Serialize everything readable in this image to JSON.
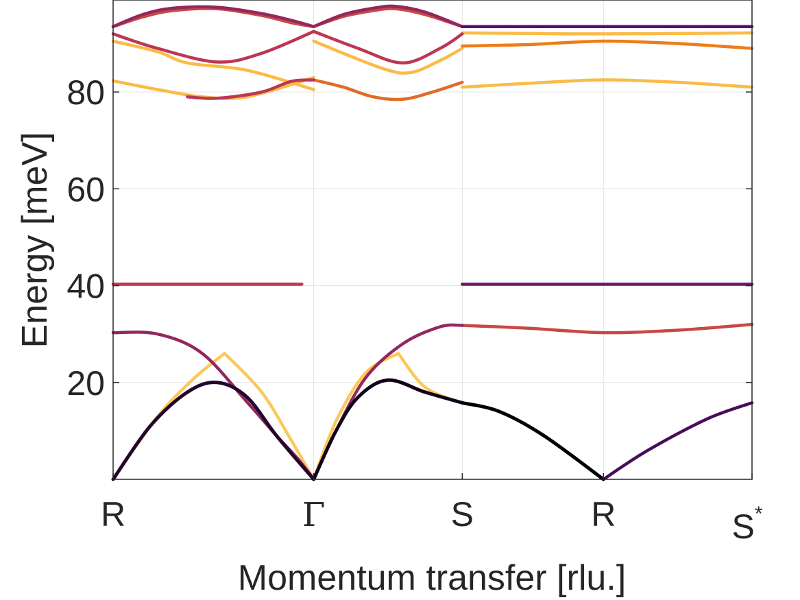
{
  "chart_data": {
    "type": "line",
    "title": "",
    "xlabel": "Momentum transfer [rlu.]",
    "ylabel": "Energy [meV]",
    "ylim": [
      0,
      99
    ],
    "x_ticks": [
      "R",
      "Γ",
      "S",
      "R",
      "S*"
    ],
    "x_tick_pos": [
      0,
      1.35,
      2.35,
      3.3,
      4.3
    ],
    "y_ticks": [
      20,
      40,
      60,
      80
    ],
    "grid": true,
    "colormap": [
      "#fcffa4",
      "#f98e09",
      "#bc3754",
      "#57106e",
      "#000004"
    ],
    "series": [
      {
        "x": [
          0,
          0.2,
          0.4,
          0.7,
          1.0,
          1.2,
          1.35
        ],
        "values": [
          93.5,
          96.0,
          97.3,
          97.5,
          96.2,
          94.8,
          93.5
        ],
        "intensity": 0.6
      },
      {
        "x": [
          0,
          0.2,
          0.4,
          0.7,
          1.0,
          1.2,
          1.35
        ],
        "values": [
          93.5,
          95.5,
          96.8,
          97.2,
          95.8,
          94.3,
          93.5
        ],
        "intensity": 0.45
      },
      {
        "x": [
          1.35,
          1.55,
          1.75,
          1.9,
          2.1,
          2.35
        ],
        "values": [
          93.5,
          96.0,
          97.3,
          97.7,
          96.5,
          93.5
        ],
        "intensity": 0.6
      },
      {
        "x": [
          1.35,
          1.55,
          1.75,
          1.9,
          2.1,
          2.35
        ],
        "values": [
          93.5,
          95.6,
          96.8,
          97.2,
          96.0,
          93.5
        ],
        "intensity": 0.45
      },
      {
        "x": [
          2.35,
          3.0,
          3.3,
          4.3
        ],
        "values": [
          93.5,
          93.5,
          93.5,
          93.5
        ],
        "intensity": 0.75
      },
      {
        "x": [
          0,
          0.3,
          0.7,
          1.0,
          1.35
        ],
        "values": [
          92.0,
          89.0,
          86.2,
          88.0,
          92.5
        ],
        "intensity": 0.5
      },
      {
        "x": [
          1.35,
          1.65,
          1.95,
          2.2,
          2.35
        ],
        "values": [
          92.5,
          89.0,
          86.0,
          89.0,
          92.0
        ],
        "intensity": 0.5
      },
      {
        "x": [
          0,
          0.3,
          0.5,
          0.9,
          1.35
        ],
        "values": [
          90.5,
          88.3,
          86.0,
          84.5,
          80.5
        ],
        "intensity": 0.15
      },
      {
        "x": [
          1.35,
          1.8,
          2.0,
          2.2,
          2.35
        ],
        "values": [
          90.5,
          85.0,
          84.0,
          86.5,
          89.0
        ],
        "intensity": 0.15
      },
      {
        "x": [
          2.35,
          2.8,
          3.3,
          3.8,
          4.3
        ],
        "values": [
          89.5,
          89.8,
          90.5,
          90.0,
          89.0
        ],
        "intensity": 0.3
      },
      {
        "x": [
          2.35,
          2.8,
          3.3,
          4.3
        ],
        "values": [
          92.2,
          92.1,
          92.0,
          92.2
        ],
        "intensity": 0.15
      },
      {
        "x": [
          0,
          0.3,
          0.6,
          0.9,
          1.35
        ],
        "values": [
          82.3,
          80.5,
          79.0,
          79.0,
          83.0
        ],
        "intensity": 0.15
      },
      {
        "x": [
          0.5,
          0.7,
          1.0,
          1.2,
          1.35
        ],
        "values": [
          79.0,
          78.7,
          80.0,
          82.2,
          82.5
        ],
        "intensity": 0.5
      },
      {
        "x": [
          1.35,
          1.55,
          1.75,
          1.95,
          2.15,
          2.35
        ],
        "values": [
          82.5,
          81.0,
          79.0,
          78.5,
          80.0,
          82.0
        ],
        "intensity": 0.35
      },
      {
        "x": [
          2.35,
          2.8,
          3.3,
          3.8,
          4.3
        ],
        "values": [
          81.0,
          81.8,
          82.5,
          82.0,
          81.0
        ],
        "intensity": 0.15
      },
      {
        "x": [
          0,
          1.27
        ],
        "values": [
          40.3,
          40.3
        ],
        "intensity": 0.5
      },
      {
        "x": [
          2.35,
          2.8,
          3.3,
          4.3
        ],
        "values": [
          40.3,
          40.3,
          40.3,
          40.3
        ],
        "intensity": 0.7
      },
      {
        "x": [
          0,
          0.3,
          0.6,
          0.9,
          1.1,
          1.25,
          1.35
        ],
        "values": [
          30.3,
          30.0,
          26.0,
          16.0,
          9.0,
          4.0,
          0
        ],
        "intensity": 0.6
      },
      {
        "x": [
          1.35,
          1.5,
          1.7,
          1.95,
          2.2,
          2.35
        ],
        "values": [
          0,
          10.0,
          21.0,
          28.0,
          31.5,
          31.8
        ],
        "intensity": 0.6
      },
      {
        "x": [
          2.35,
          2.8,
          3.3,
          3.8,
          4.3
        ],
        "values": [
          31.8,
          31.2,
          30.3,
          30.8,
          32.0
        ],
        "intensity": 0.45
      },
      {
        "x": [
          0,
          0.25,
          0.5,
          0.7,
          0.9,
          1.1,
          1.35
        ],
        "values": [
          0,
          11.0,
          18.0,
          20.0,
          17.0,
          9.0,
          0
        ],
        "intensity": 0.9
      },
      {
        "x": [
          1.35,
          1.5,
          1.65,
          1.85,
          2.1,
          2.35
        ],
        "values": [
          0,
          10.0,
          17.0,
          20.5,
          18.0,
          15.8
        ],
        "intensity": 0.95
      },
      {
        "x": [
          2.35,
          2.6,
          2.9,
          3.3
        ],
        "values": [
          15.8,
          14.0,
          9.0,
          0
        ],
        "intensity": 1.0
      },
      {
        "x": [
          3.3,
          3.6,
          4.0,
          4.3
        ],
        "values": [
          0,
          6.0,
          12.5,
          15.8
        ],
        "intensity": 0.8
      },
      {
        "x": [
          0,
          0.3,
          0.55,
          0.75
        ],
        "values": [
          0,
          13.0,
          21.0,
          26.0
        ],
        "intensity": 0.12
      },
      {
        "x": [
          0.75,
          1.0,
          1.2,
          1.35
        ],
        "values": [
          26.0,
          18.0,
          8.0,
          0
        ],
        "intensity": 0.12
      },
      {
        "x": [
          1.35,
          1.5,
          1.7,
          1.92
        ],
        "values": [
          0,
          12.0,
          22.0,
          26.0
        ],
        "intensity": 0.12
      },
      {
        "x": [
          1.92,
          2.1,
          2.35
        ],
        "values": [
          26.0,
          19.0,
          15.8
        ],
        "intensity": 0.12
      }
    ]
  }
}
